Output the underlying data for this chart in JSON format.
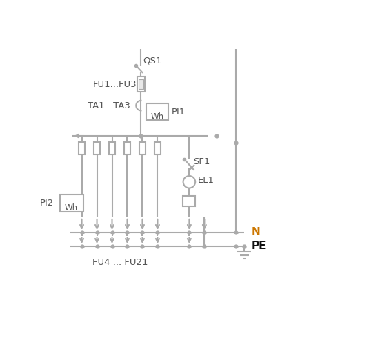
{
  "bg_color": "#ffffff",
  "lc": "#aaaaaa",
  "tc": "#555555",
  "N_color": "#cc7700",
  "PE_color": "#111111",
  "figsize": [
    5.51,
    4.93
  ],
  "dpi": 100,
  "xlim": [
    0,
    10
  ],
  "ylim": [
    0,
    9.5
  ],
  "QS1_label": "QS1",
  "FU13_label": "FU1...FU3",
  "TA13_label": "TA1...TA3",
  "PI1_label": "PI1",
  "PI2_label": "PI2",
  "SF1_label": "SF1",
  "EL1_label": "EL1",
  "FU421_label": "FU4 ... FU21",
  "N_label": "N",
  "PE_label": "PE",
  "Wh_label": "Wh"
}
